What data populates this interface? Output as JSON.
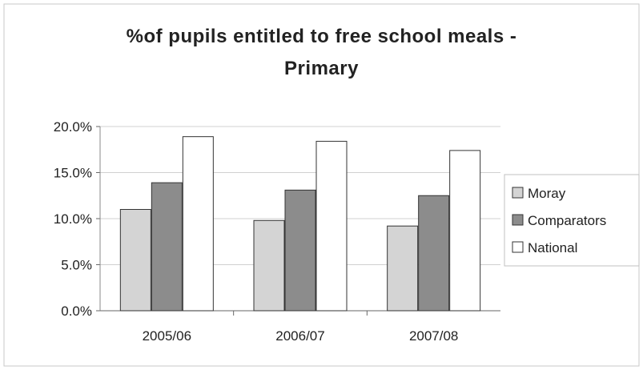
{
  "chart_data": {
    "type": "bar",
    "title_lines": [
      "%of pupils entitled to free school meals -",
      "Primary"
    ],
    "xlabel": "",
    "ylabel": "",
    "categories": [
      "2005/06",
      "2006/07",
      "2007/08"
    ],
    "series": [
      {
        "name": "Moray",
        "values": [
          11.0,
          9.8,
          9.2
        ],
        "color": "#d4d4d4"
      },
      {
        "name": "Comparators",
        "values": [
          13.9,
          13.1,
          12.5
        ],
        "color": "#8c8c8c"
      },
      {
        "name": "National",
        "values": [
          18.9,
          18.4,
          17.4
        ],
        "color": "#ffffff"
      }
    ],
    "ylim": [
      0,
      20
    ],
    "yticks": [
      "0.0%",
      "5.0%",
      "10.0%",
      "15.0%",
      "20.0%"
    ],
    "ytick_values": [
      0,
      5,
      10,
      15,
      20
    ],
    "grid": true,
    "legend_position": "right"
  }
}
